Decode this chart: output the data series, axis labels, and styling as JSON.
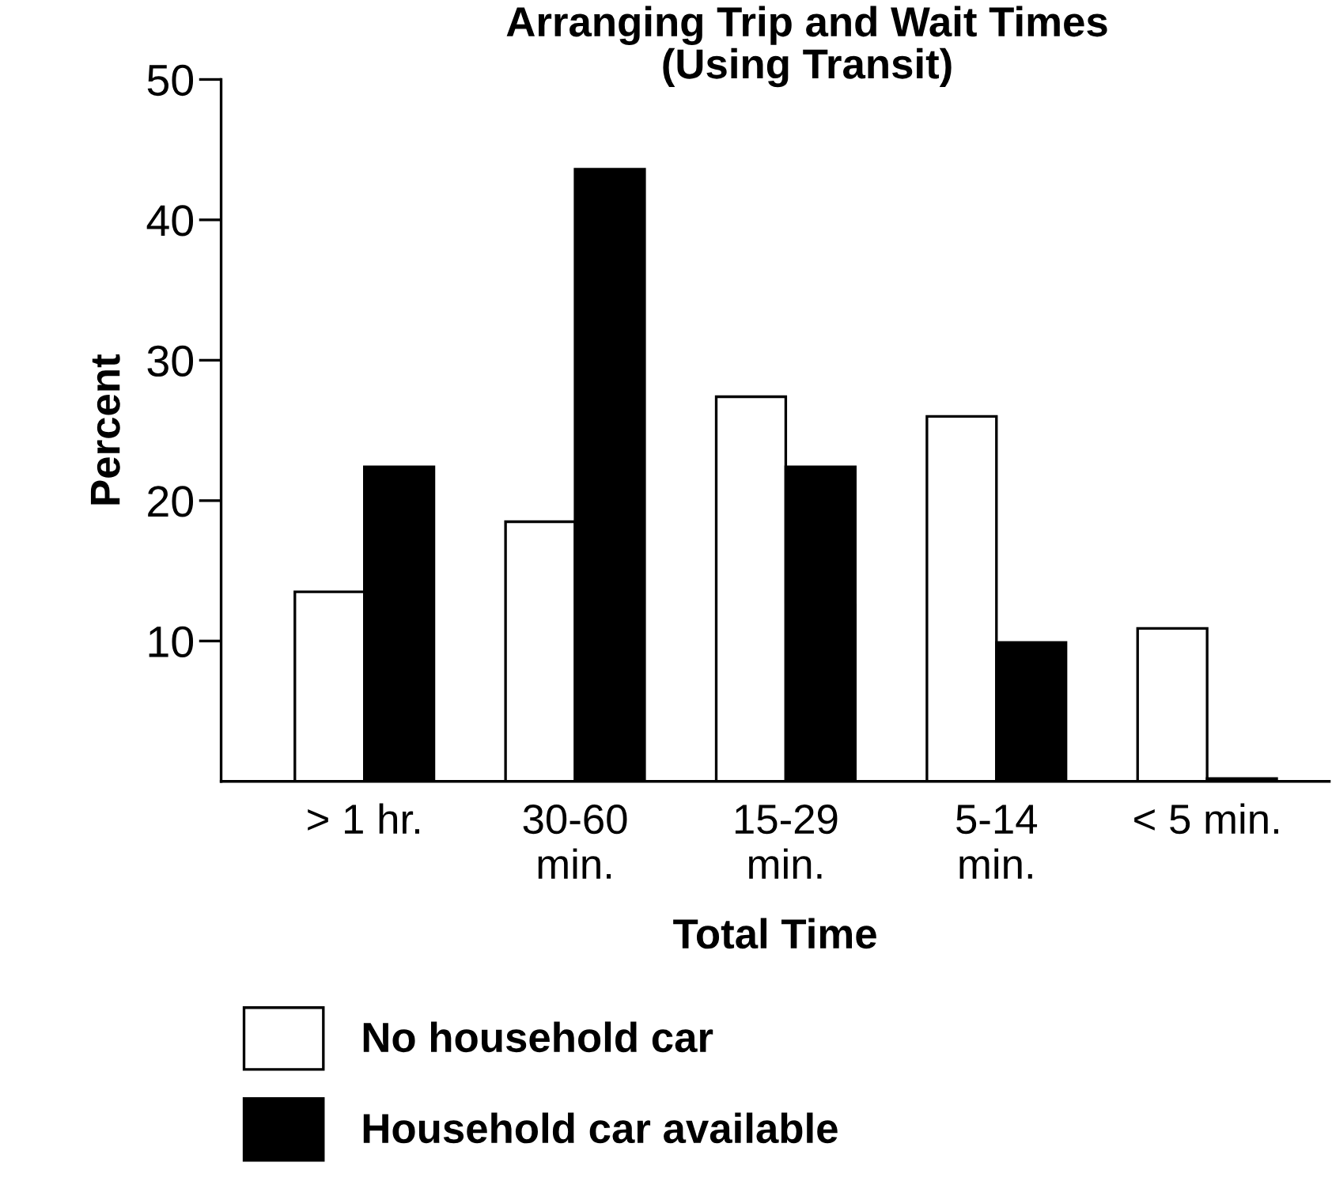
{
  "chart_data": {
    "type": "bar",
    "title": "Arranging Trip and Wait Times\n(Using Transit)",
    "xlabel": "Total Time",
    "ylabel": "Percent",
    "categories": [
      "> 1 hr.",
      "30-60\nmin.",
      "15-29\nmin.",
      "5-14\nmin.",
      "< 5 min."
    ],
    "series": [
      {
        "name": "No household car",
        "color": "#ffffff",
        "values": [
          13.5,
          18.5,
          27.4,
          26.0,
          10.9
        ]
      },
      {
        "name": "Household car available",
        "color": "#000000",
        "values": [
          22.4,
          43.6,
          22.4,
          9.9,
          0.2
        ]
      }
    ],
    "ylim": [
      0,
      50
    ],
    "yticks": [
      10,
      20,
      30,
      40,
      50
    ],
    "grid": false,
    "legend": "bottom left"
  }
}
